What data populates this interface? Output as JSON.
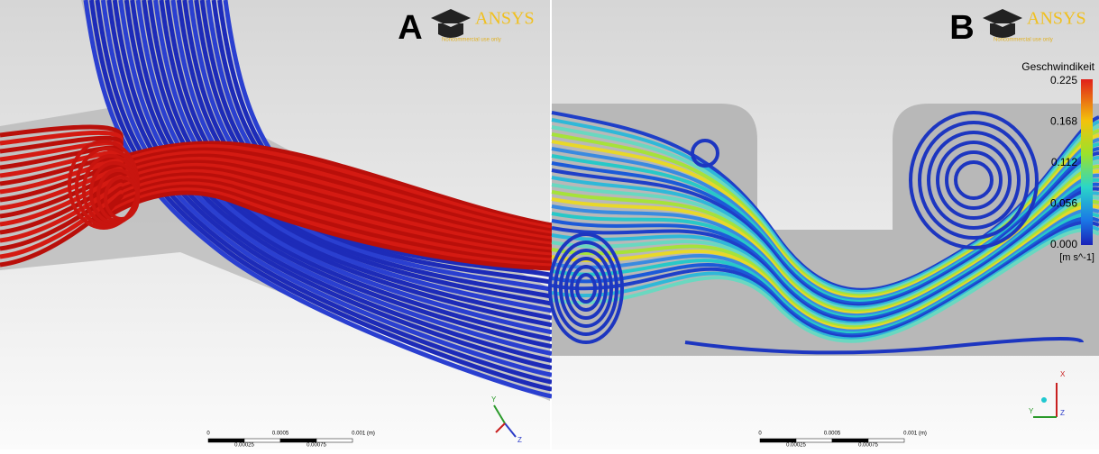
{
  "panels": [
    {
      "label": "A",
      "logo": {
        "name": "ANSYS",
        "note": "Noncommercial use only"
      },
      "scale_bar": {
        "labels": [
          "0",
          "0.0005",
          "0.001 (m)"
        ],
        "sub_labels": [
          "0.00025",
          "0.00075"
        ]
      },
      "triad": [
        "Y",
        "Z"
      ]
    },
    {
      "label": "B",
      "logo": {
        "name": "ANSYS",
        "note": "Noncommercial use only"
      },
      "scale_bar": {
        "labels": [
          "0",
          "0.0005",
          "0.001 (m)"
        ],
        "sub_labels": [
          "0.00025",
          "0.00075"
        ]
      },
      "triad": [
        "X",
        "Y",
        "Z"
      ],
      "legend": {
        "title": "Geschwindikeit",
        "ticks": [
          "0.225",
          "0.168",
          "0.112",
          "0.056",
          "0.000"
        ],
        "unit": "[m s^-1]"
      }
    }
  ]
}
